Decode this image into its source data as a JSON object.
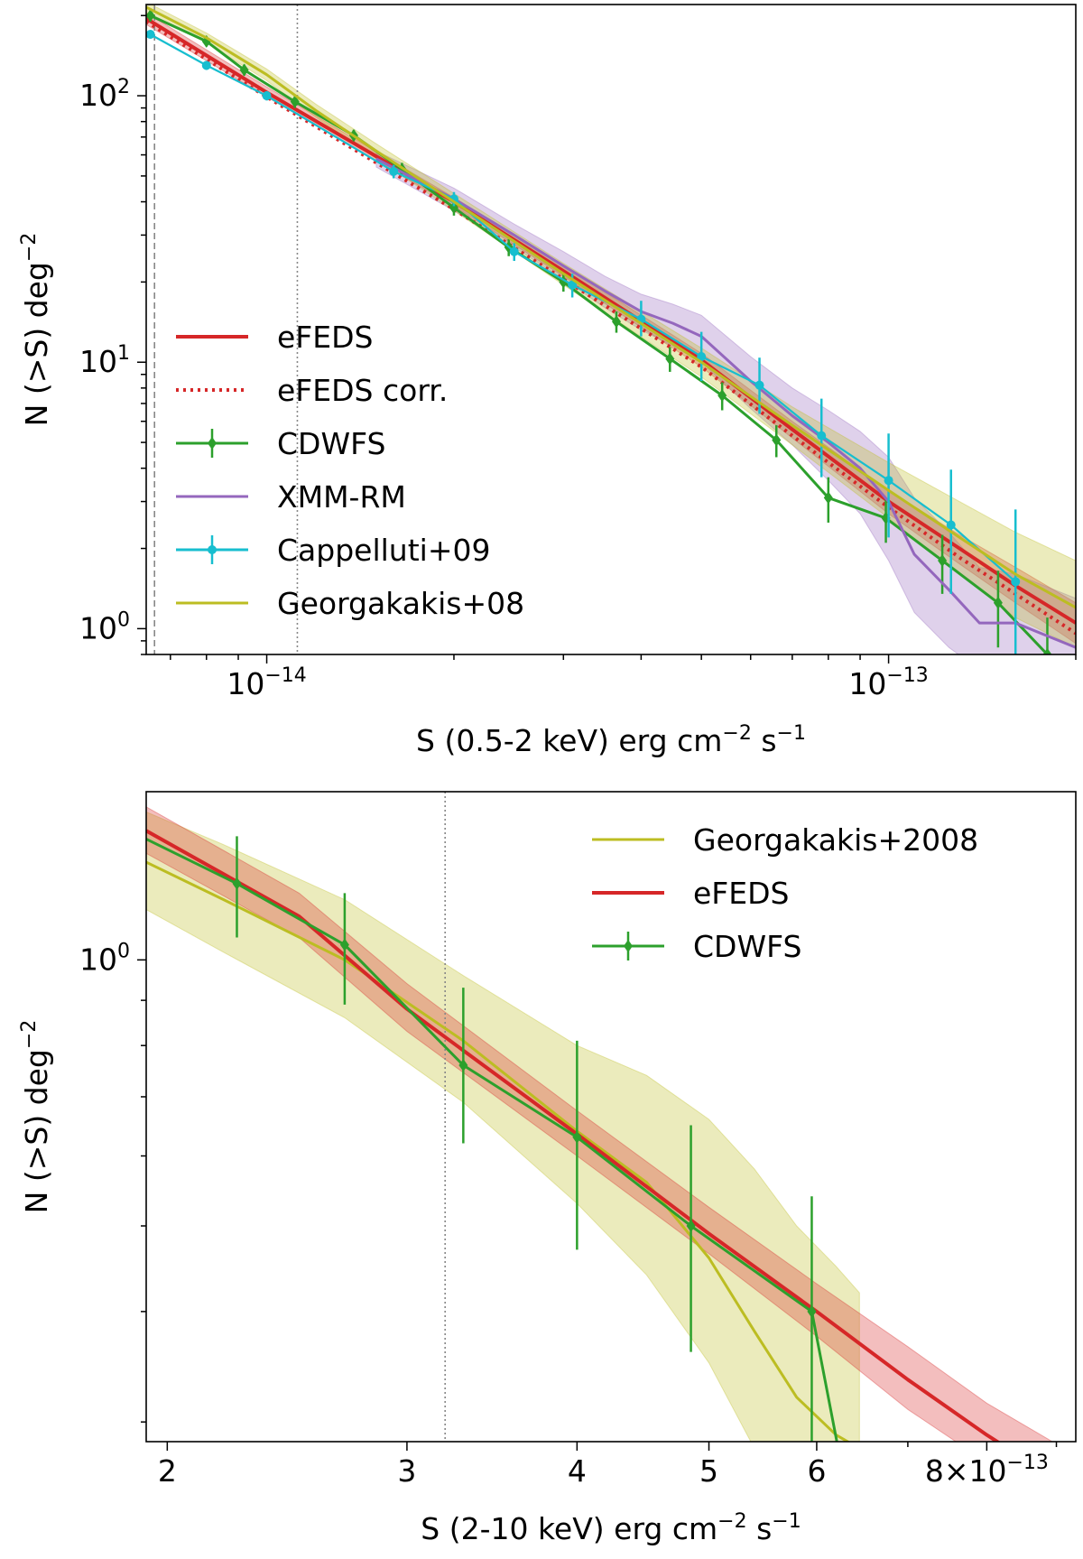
{
  "colors": {
    "efeds": "#d62728",
    "cdwfs": "#2ca02c",
    "xmm": "#9467bd",
    "cappelluti": "#17becf",
    "georgakakis": "#bcbd22"
  },
  "chart_data": [
    {
      "type": "line",
      "panel": "top",
      "xlabel": "S (0.5-2 keV) erg cm",
      "xlabel_sup": "−2",
      "xlabel_tail": " s",
      "xlabel_sup2": "−1",
      "ylabel": "N (>S) deg",
      "ylabel_sup": "−2",
      "xscale": "log",
      "yscale": "log",
      "xlim": [
        6.4e-15,
        2e-13
      ],
      "ylim": [
        0.8,
        220
      ],
      "xticks": [
        {
          "value": 1e-14,
          "base": "10",
          "exp": "−14"
        },
        {
          "value": 1e-13,
          "base": "10",
          "exp": "−13"
        }
      ],
      "yticks": [
        {
          "value": 1,
          "base": "10",
          "exp": "0"
        },
        {
          "value": 10,
          "base": "10",
          "exp": "1"
        },
        {
          "value": 100,
          "base": "10",
          "exp": "2"
        }
      ],
      "vlines": [
        {
          "x": 6.6e-15,
          "style": "dashed"
        },
        {
          "x": 1.12e-14,
          "style": "dotted"
        }
      ],
      "legend": [
        "eFEDS",
        "eFEDS corr.",
        "CDWFS",
        "XMM-RM",
        "Cappelluti+09",
        "Georgakakis+08"
      ],
      "series": [
        {
          "name": "eFEDS",
          "style": "solid",
          "x": [
            6.4e-15,
            1e-14,
            2e-14,
            3e-14,
            5e-14,
            7e-14,
            1e-13,
            1.3e-13,
            1.6e-13,
            2e-13
          ],
          "y": [
            195,
            103,
            40,
            22,
            10.2,
            5.6,
            3.0,
            2.0,
            1.45,
            1.05
          ],
          "band_lo": [
            185,
            99,
            38.5,
            21,
            9.6,
            5.2,
            2.7,
            1.75,
            1.25,
            0.88
          ],
          "band_hi": [
            205,
            108,
            41.5,
            23,
            10.8,
            6.0,
            3.3,
            2.25,
            1.7,
            1.25
          ]
        },
        {
          "name": "eFEDS corr.",
          "style": "dotted",
          "x": [
            6.4e-15,
            1e-14,
            2e-14,
            3e-14,
            5e-14,
            7e-14,
            1e-13,
            1.3e-13,
            1.6e-13,
            2e-13
          ],
          "y": [
            190,
            99,
            37.5,
            20.5,
            9.6,
            5.3,
            2.85,
            1.85,
            1.35,
            0.96
          ]
        },
        {
          "name": "CDWFS",
          "style": "errorbar",
          "x": [
            6.5e-15,
            8e-15,
            9.2e-15,
            1.11e-14,
            1.38e-14,
            1.65e-14,
            2e-14,
            2.45e-14,
            3e-14,
            3.65e-14,
            4.45e-14,
            5.4e-14,
            6.6e-14,
            8e-14,
            9.9e-14,
            1.22e-13,
            1.5e-13,
            1.8e-13
          ],
          "y": [
            200,
            160,
            125,
            95,
            71,
            53,
            38,
            27,
            20,
            14.2,
            10.3,
            7.5,
            5.1,
            3.1,
            2.6,
            1.8,
            1.25,
            0.8
          ],
          "err_lo": [
            10,
            7,
            6,
            5,
            3.5,
            3,
            2.5,
            2,
            1.6,
            1.3,
            1.1,
            0.9,
            0.7,
            0.6,
            0.5,
            0.45,
            0.4,
            0.3
          ],
          "err_hi": [
            10,
            7,
            6,
            5,
            3.5,
            3,
            2.5,
            2,
            1.6,
            1.3,
            1.1,
            0.9,
            0.7,
            0.6,
            0.5,
            0.45,
            0.4,
            0.3
          ]
        },
        {
          "name": "XMM-RM",
          "style": "solid",
          "x": [
            1.5e-14,
            2e-14,
            2.5e-14,
            3e-14,
            3.5e-14,
            4e-14,
            4.5e-14,
            5e-14,
            6e-14,
            7e-14,
            8e-14,
            9e-14,
            1e-13,
            1.1e-13,
            1.25e-13,
            1.4e-13,
            1.6e-13,
            2e-13
          ],
          "y": [
            58,
            41,
            30,
            23,
            18.5,
            15.5,
            14.0,
            12.5,
            8.5,
            6.3,
            5.0,
            4.0,
            3.0,
            1.9,
            1.4,
            1.05,
            1.05,
            0.85
          ],
          "band_lo": [
            54,
            37,
            27,
            20.5,
            16,
            13.2,
            11.5,
            10,
            6.7,
            4.9,
            3.6,
            2.7,
            1.8,
            1.15,
            0.85,
            0.7,
            0.65,
            0.6
          ],
          "band_hi": [
            62,
            45,
            33,
            26,
            21,
            18,
            16.5,
            15,
            10.5,
            8.0,
            6.6,
            5.5,
            4.4,
            3.1,
            2.3,
            1.7,
            1.6,
            1.3
          ]
        },
        {
          "name": "Cappelluti+09",
          "style": "errorbar",
          "x": [
            6.5e-15,
            8e-15,
            1e-14,
            1.6e-14,
            2e-14,
            2.5e-14,
            3.1e-14,
            4e-14,
            5e-14,
            6.2e-14,
            7.8e-14,
            1e-13,
            1.26e-13,
            1.6e-13
          ],
          "y": [
            170,
            130,
            100,
            52,
            41,
            26,
            19.5,
            14.5,
            10.5,
            8.2,
            5.3,
            3.6,
            2.45,
            1.5
          ],
          "err_lo": [
            6,
            5,
            4,
            3,
            2.5,
            2,
            2,
            2,
            2,
            1.8,
            1.6,
            1.4,
            1.1,
            0.8
          ],
          "err_hi": [
            6,
            5,
            4,
            3,
            2.5,
            2,
            2,
            2.5,
            2.5,
            2.2,
            2.0,
            1.8,
            1.5,
            1.3
          ]
        },
        {
          "name": "Georgakakis+08",
          "style": "solid",
          "x": [
            6.4e-15,
            8e-15,
            1e-14,
            1.2e-14,
            1.5e-14,
            2e-14,
            3e-14,
            5e-14,
            7e-14,
            1e-13,
            1.3e-13,
            1.6e-13,
            2e-13
          ],
          "y": [
            215,
            165,
            120,
            88,
            62,
            40,
            21.5,
            10.0,
            5.8,
            3.3,
            2.2,
            1.6,
            1.2
          ],
          "band_lo": [
            205,
            158,
            114,
            83,
            58,
            37,
            19.5,
            8.8,
            4.9,
            2.6,
            1.6,
            1.1,
            0.85
          ],
          "band_hi": [
            225,
            172,
            126,
            93,
            66,
            43,
            23.5,
            11.3,
            6.8,
            4.2,
            3.0,
            2.3,
            1.8
          ]
        }
      ]
    },
    {
      "type": "line",
      "panel": "bottom",
      "xlabel": "S (2-10 keV) erg cm",
      "xlabel_sup": "−2",
      "xlabel_tail": " s",
      "xlabel_sup2": "−1",
      "ylabel": "N (>S) deg",
      "ylabel_sup": "−2",
      "xscale": "log",
      "yscale": "log",
      "xlim": [
        1.93e-13,
        9.3e-13
      ],
      "ylim": [
        0.285,
        1.55
      ],
      "xticks": [
        {
          "value": 2e-13,
          "label": "2"
        },
        {
          "value": 3e-13,
          "label": "3"
        },
        {
          "value": 4e-13,
          "label": "4"
        },
        {
          "value": 5e-13,
          "label": "5"
        },
        {
          "value": 6e-13,
          "label": "6"
        },
        {
          "value": 8e-13,
          "label": "8×10",
          "exp": "−13"
        }
      ],
      "yticks": [
        {
          "value": 1,
          "base": "10",
          "exp": "0"
        }
      ],
      "vlines": [
        {
          "x": 3.2e-13,
          "style": "dotted"
        }
      ],
      "legend": [
        "Georgakakis+2008",
        "eFEDS",
        "CDWFS"
      ],
      "series": [
        {
          "name": "Georgakakis+2008",
          "style": "solid",
          "x": [
            1.93e-13,
            2.2e-13,
            2.7e-13,
            3.3e-13,
            4e-13,
            4.5e-13,
            5e-13,
            5.4e-13,
            5.8e-13,
            6.2e-13,
            6.45e-13
          ],
          "y": [
            1.29,
            1.17,
            1.0,
            0.81,
            0.64,
            0.56,
            0.46,
            0.38,
            0.32,
            0.29,
            0.28
          ],
          "band_lo": [
            1.14,
            1.02,
            0.86,
            0.69,
            0.53,
            0.44,
            0.35,
            0.28,
            0.25,
            0.24,
            0.24
          ],
          "band_hi": [
            1.47,
            1.35,
            1.17,
            0.96,
            0.8,
            0.74,
            0.66,
            0.58,
            0.5,
            0.45,
            0.42
          ]
        },
        {
          "name": "eFEDS",
          "style": "solid",
          "x": [
            1.93e-13,
            2.5e-13,
            3e-13,
            4e-13,
            5e-13,
            6e-13,
            7e-13,
            8e-13,
            9.3e-13
          ],
          "y": [
            1.4,
            1.12,
            0.88,
            0.635,
            0.49,
            0.4,
            0.335,
            0.29,
            0.25
          ],
          "band_lo": [
            1.32,
            1.06,
            0.83,
            0.6,
            0.465,
            0.375,
            0.31,
            0.27,
            0.23
          ],
          "band_hi": [
            1.49,
            1.19,
            0.94,
            0.675,
            0.525,
            0.43,
            0.365,
            0.315,
            0.275
          ]
        },
        {
          "name": "CDWFS",
          "style": "errorbar",
          "x": [
            1.93e-13,
            2.25e-13,
            2.7e-13,
            3.3e-13,
            4e-13,
            4.85e-13,
            5.95e-13,
            6.25e-13
          ],
          "y": [
            1.37,
            1.22,
            1.04,
            0.76,
            0.63,
            0.5,
            0.4,
            0.27
          ],
          "err_lo": [
            0,
            0.16,
            0.15,
            0.14,
            0.16,
            0.14,
            0.12,
            0
          ],
          "err_hi": [
            0,
            0.16,
            0.15,
            0.17,
            0.18,
            0.15,
            0.14,
            0
          ]
        }
      ]
    }
  ]
}
